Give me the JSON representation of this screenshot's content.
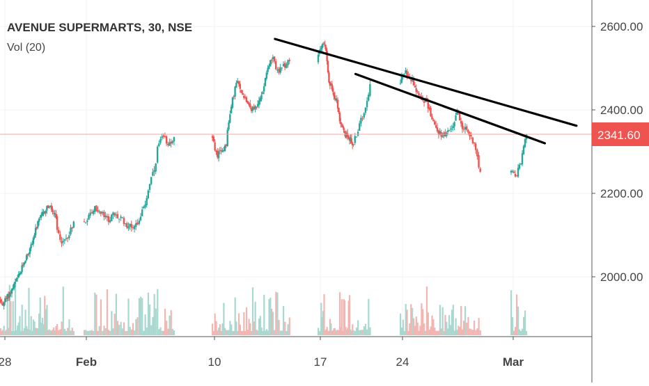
{
  "legend": {
    "title": "AVENUE SUPERMARTS, 30, NSE",
    "volume_label": "Vol (20)"
  },
  "colors": {
    "up": "#26a69a",
    "down": "#ef5350",
    "up_volume": "#a8d8d0",
    "down_volume": "#f3b5b2",
    "price_line": "#f4a6a2",
    "price_tag": "#ef5350",
    "trendline": "#000000",
    "grid": "#f0f3fa",
    "axis": "#555555"
  },
  "chart_data": {
    "type": "candlestick",
    "title": "AVENUE SUPERMARTS, 30, NSE",
    "ylim": [
      1870,
      2640
    ],
    "y_ticks": [
      2000,
      2200,
      2400,
      2600
    ],
    "y_tick_labels": [
      "2000.00",
      "2200.00",
      "2400.00",
      "2600.00"
    ],
    "x_ticks": [
      "28",
      "Feb",
      "10",
      "17",
      "24",
      "Mar"
    ],
    "x_tick_dates": [
      "2020-01-28",
      "2020-02-03",
      "2020-02-10",
      "2020-02-17",
      "2020-02-24",
      "2020-03-02"
    ],
    "last_price": 2341.6,
    "last_price_label": "2341.60",
    "grid": true,
    "trading_days": [
      "2020-01-27",
      "2020-01-28",
      "2020-01-29",
      "2020-01-30",
      "2020-01-31",
      "2020-02-01",
      "2020-02-03",
      "2020-02-04",
      "2020-02-05",
      "2020-02-06",
      "2020-02-07",
      "2020-02-10",
      "2020-02-11",
      "2020-02-12",
      "2020-02-13",
      "2020-02-14",
      "2020-02-17",
      "2020-02-18",
      "2020-02-19",
      "2020-02-20",
      "2020-02-24",
      "2020-02-25",
      "2020-02-26",
      "2020-02-27",
      "2020-02-28",
      "2020-03-02"
    ],
    "daily_path": [
      [
        1968,
        1962,
        1945,
        1938
      ],
      [
        1936,
        1950,
        1965,
        1985
      ],
      [
        1990,
        2010,
        2040,
        2060
      ],
      [
        2065,
        2100,
        2130,
        2150
      ],
      [
        2150,
        2170,
        2160,
        2140
      ],
      [
        2110,
        2080,
        2100,
        2130
      ],
      [
        2130,
        2150,
        2165,
        2150
      ],
      [
        2150,
        2135,
        2150,
        2140
      ],
      [
        2140,
        2125,
        2120,
        2130
      ],
      [
        2140,
        2170,
        2230,
        2265
      ],
      [
        2310,
        2335,
        2320,
        2330
      ],
      [
        2330,
        2290,
        2300,
        2320
      ],
      [
        2350,
        2420,
        2470,
        2440
      ],
      [
        2440,
        2420,
        2400,
        2410
      ],
      [
        2410,
        2440,
        2500,
        2520
      ],
      [
        2520,
        2490,
        2505,
        2515
      ],
      [
        2530,
        2560,
        2555,
        2460
      ],
      [
        2460,
        2440,
        2420,
        2360
      ],
      [
        2360,
        2340,
        2335,
        2320
      ],
      [
        2320,
        2360,
        2400,
        2460
      ],
      [
        2470,
        2490,
        2480,
        2460
      ],
      [
        2450,
        2430,
        2420,
        2390
      ],
      [
        2380,
        2350,
        2340,
        2340
      ],
      [
        2345,
        2360,
        2400,
        2360
      ],
      [
        2360,
        2340,
        2320,
        2250
      ],
      [
        2250,
        2240,
        2280,
        2341.6
      ]
    ],
    "trendlines": [
      {
        "x1": "2020-02-14",
        "y1": 2570,
        "x2": "2020-03-06",
        "y2": 2362
      },
      {
        "x1": "2020-02-20",
        "y1": 2486,
        "x2": "2020-03-04",
        "y2": 2320
      }
    ],
    "volume_ylim": [
      0,
      400000
    ]
  }
}
